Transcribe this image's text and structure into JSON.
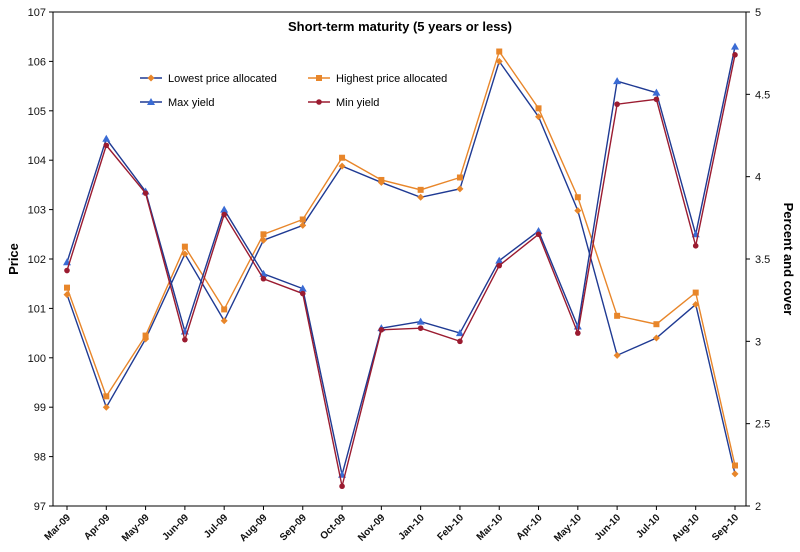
{
  "chart_data": {
    "type": "line",
    "title": "Short-term maturity (5 years or less)",
    "ylabel": "Price",
    "y2label": "Percent and cover",
    "ylim": [
      97,
      107
    ],
    "y2lim": [
      2,
      5
    ],
    "yticks": [
      97,
      98,
      99,
      100,
      101,
      102,
      103,
      104,
      105,
      106,
      107
    ],
    "y2ticks": [
      "2",
      "2.5",
      "3",
      "3.5",
      "4",
      "4.5",
      "5"
    ],
    "grid": false,
    "legend_position": "top-left",
    "categories": [
      "Mar-09",
      "Apr-09",
      "May-09",
      "Jun-09",
      "Jul-09",
      "Aug-09",
      "Sep-09",
      "Oct-09",
      "Nov-09",
      "Jan-10",
      "Feb-10",
      "Mar-10",
      "Apr-10",
      "May-10",
      "Jun-10",
      "Jul-10",
      "Aug-10",
      "Sep-10"
    ],
    "series": [
      {
        "name": "Lowest price allocated",
        "axis": "left",
        "color": "#1f3a93",
        "marker": "diamond",
        "marker_color": "#e8862a",
        "values": [
          101.28,
          99.0,
          100.38,
          102.1,
          100.75,
          102.38,
          102.68,
          103.88,
          103.55,
          103.25,
          103.42,
          106.0,
          104.88,
          102.98,
          100.05,
          100.4,
          101.08,
          97.65
        ]
      },
      {
        "name": "Highest price allocated",
        "axis": "left",
        "color": "#e8862a",
        "marker": "square",
        "marker_color": "#e8862a",
        "values": [
          101.42,
          99.22,
          100.45,
          102.25,
          100.98,
          102.5,
          102.8,
          104.05,
          103.6,
          103.4,
          103.65,
          106.2,
          105.05,
          103.25,
          100.85,
          100.68,
          101.32,
          97.82
        ]
      },
      {
        "name": "Max yield",
        "axis": "right",
        "color": "#1f3a93",
        "marker": "triangle",
        "marker_color": "#3a6bd4",
        "values": [
          3.48,
          4.23,
          3.91,
          3.06,
          3.8,
          3.41,
          3.32,
          2.19,
          3.08,
          3.12,
          3.05,
          3.49,
          3.67,
          3.09,
          4.58,
          4.51,
          3.65,
          4.79
        ]
      },
      {
        "name": "Min yield",
        "axis": "right",
        "color": "#9b1b30",
        "marker": "circle",
        "marker_color": "#9b1b30",
        "values": [
          3.43,
          4.19,
          3.9,
          3.01,
          3.77,
          3.38,
          3.29,
          2.12,
          3.07,
          3.08,
          3.0,
          3.46,
          3.65,
          3.05,
          4.44,
          4.47,
          3.58,
          4.74
        ]
      }
    ]
  }
}
